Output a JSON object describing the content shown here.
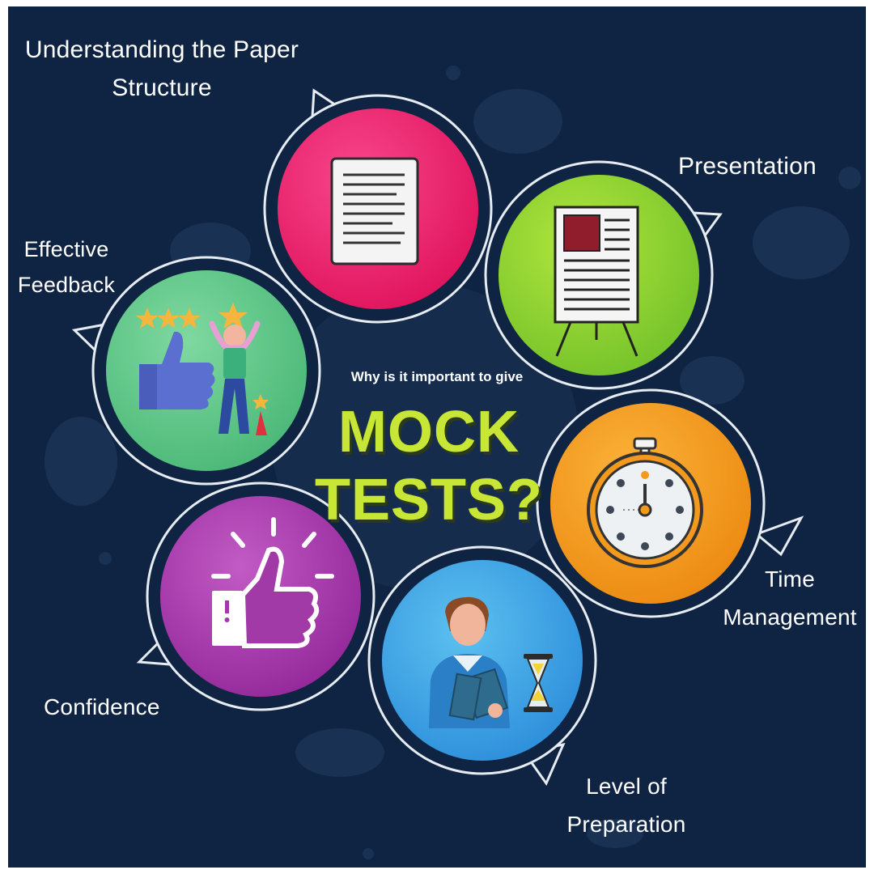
{
  "title": {
    "question": "Why is it important to give",
    "line1": "MOCK",
    "line2": "TESTS?"
  },
  "topics": [
    {
      "id": "structure",
      "lines": [
        "Understanding the Paper",
        "Structure"
      ],
      "icon": "document-icon",
      "color": "#ee1f6b"
    },
    {
      "id": "presentation",
      "lines": [
        "Presentation"
      ],
      "icon": "presentation-board-icon",
      "color": "#8fd12a"
    },
    {
      "id": "feedback",
      "lines": [
        "Effective",
        "Feedback"
      ],
      "icon": "feedback-rating-icon",
      "color": "#5fc586"
    },
    {
      "id": "time",
      "lines": [
        "Time",
        "Management"
      ],
      "icon": "stopwatch-icon",
      "color": "#f39a1e"
    },
    {
      "id": "confidence",
      "lines": [
        "Confidence"
      ],
      "icon": "thumbs-up-icon",
      "color": "#a13aa6"
    },
    {
      "id": "preparation",
      "lines": [
        "Level of",
        "Preparation"
      ],
      "icon": "student-reading-icon",
      "color": "#3aa3e6"
    }
  ],
  "colors": {
    "background": "#0f2442",
    "title": "#c8e635",
    "ring": "#e6ecf2"
  }
}
